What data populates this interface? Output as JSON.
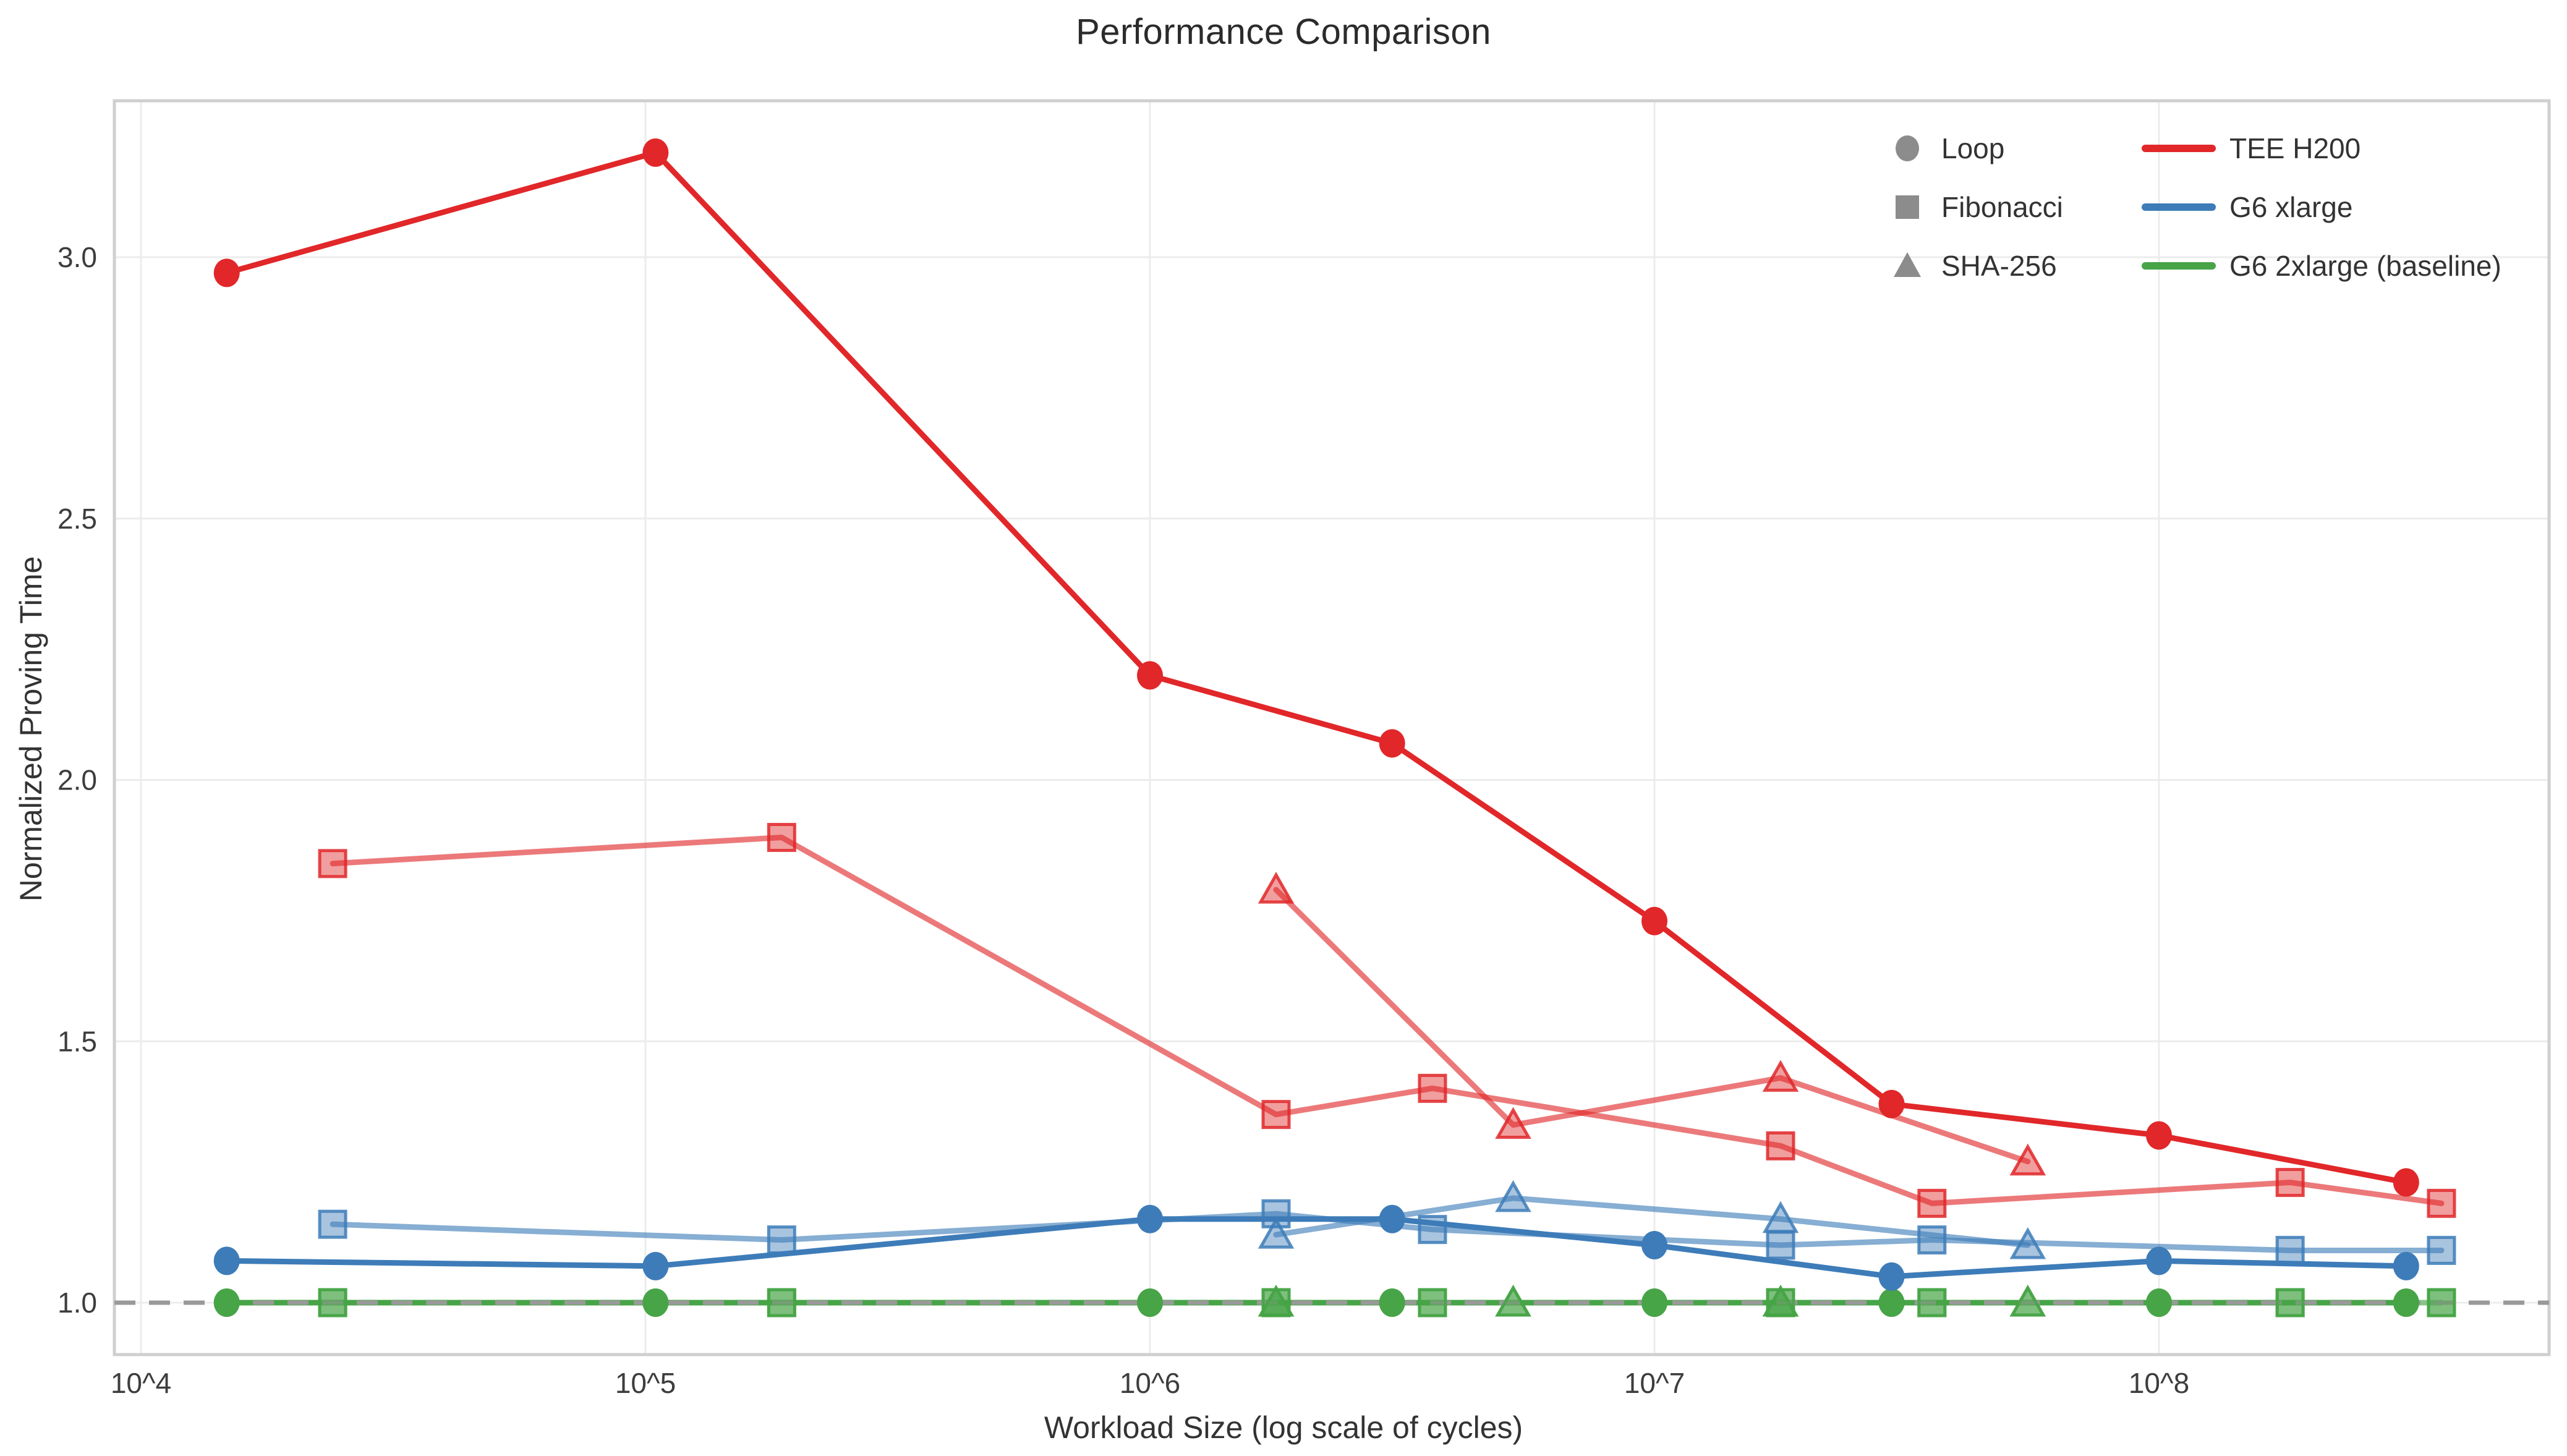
{
  "chart": {
    "title": "Performance Comparison",
    "xlabel": "Workload Size (log scale of cycles)",
    "ylabel": "Normalized Proving Time"
  },
  "chart_data": {
    "type": "line",
    "title": "Performance Comparison",
    "xlabel": "Workload Size (log scale of cycles)",
    "ylabel": "Normalized Proving Time",
    "x_axis": {
      "scale": "log10",
      "range_log": [
        3.947,
        8.774
      ],
      "ticks": [
        {
          "log": 4,
          "label": "10^4"
        },
        {
          "log": 5,
          "label": "10^5"
        },
        {
          "log": 6,
          "label": "10^6"
        },
        {
          "log": 7,
          "label": "10^7"
        },
        {
          "log": 8,
          "label": "10^8"
        }
      ]
    },
    "y_axis": {
      "range": [
        0.9,
        3.3
      ],
      "ticks": [
        {
          "value": 1.0,
          "label": "1.0"
        },
        {
          "value": 1.5,
          "label": "1.5"
        },
        {
          "value": 2.0,
          "label": "2.0"
        },
        {
          "value": 2.5,
          "label": "2.5"
        },
        {
          "value": 3.0,
          "label": "3.0"
        }
      ],
      "grid": true
    },
    "baseline": {
      "y": 1.0,
      "style": "dashed",
      "color": "#999999"
    },
    "workloads": [
      {
        "name": "Loop",
        "marker": "circle"
      },
      {
        "name": "Fibonacci",
        "marker": "square"
      },
      {
        "name": "SHA-256",
        "marker": "triangle"
      }
    ],
    "instances": [
      {
        "name": "TEE H200",
        "color": "#e12729"
      },
      {
        "name": "G6 xlarge",
        "color": "#3d7cb8"
      },
      {
        "name": "G6 2xlarge (baseline)",
        "color": "#47a447"
      }
    ],
    "series": [
      {
        "instance": "TEE H200",
        "workload": "Loop",
        "marker": "circle",
        "color": "#e12729",
        "emphasis": "solid",
        "x_log": [
          4.17,
          5.02,
          6.0,
          6.48,
          7.0,
          7.47,
          8.0,
          8.49
        ],
        "y": [
          2.97,
          3.2,
          2.2,
          2.07,
          1.73,
          1.38,
          1.32,
          1.23
        ]
      },
      {
        "instance": "TEE H200",
        "workload": "Fibonacci",
        "marker": "square",
        "color": "#e12729",
        "emphasis": "light",
        "x_log": [
          4.38,
          5.27,
          6.25,
          6.56,
          7.25,
          7.55,
          8.26,
          8.56
        ],
        "y": [
          1.84,
          1.89,
          1.36,
          1.41,
          1.3,
          1.19,
          1.23,
          1.19
        ]
      },
      {
        "instance": "TEE H200",
        "workload": "SHA-256",
        "marker": "triangle",
        "color": "#e12729",
        "emphasis": "light",
        "x_log": [
          6.25,
          6.72,
          7.25,
          7.74
        ],
        "y": [
          1.79,
          1.34,
          1.43,
          1.27
        ]
      },
      {
        "instance": "G6 xlarge",
        "workload": "Loop",
        "marker": "circle",
        "color": "#3d7cb8",
        "emphasis": "solid",
        "x_log": [
          4.17,
          5.02,
          6.0,
          6.48,
          7.0,
          7.47,
          8.0,
          8.49
        ],
        "y": [
          1.08,
          1.07,
          1.16,
          1.16,
          1.11,
          1.05,
          1.08,
          1.07
        ]
      },
      {
        "instance": "G6 xlarge",
        "workload": "Fibonacci",
        "marker": "square",
        "color": "#3d7cb8",
        "emphasis": "light",
        "x_log": [
          4.38,
          5.27,
          6.25,
          6.56,
          7.25,
          7.55,
          8.26,
          8.56
        ],
        "y": [
          1.15,
          1.12,
          1.17,
          1.14,
          1.11,
          1.12,
          1.1,
          1.1
        ]
      },
      {
        "instance": "G6 xlarge",
        "workload": "SHA-256",
        "marker": "triangle",
        "color": "#3d7cb8",
        "emphasis": "light",
        "x_log": [
          6.25,
          6.72,
          7.25,
          7.74
        ],
        "y": [
          1.13,
          1.2,
          1.16,
          1.11
        ]
      },
      {
        "instance": "G6 2xlarge (baseline)",
        "workload": "Loop",
        "marker": "circle",
        "color": "#47a447",
        "emphasis": "solid",
        "x_log": [
          4.17,
          5.02,
          6.0,
          6.48,
          7.0,
          7.47,
          8.0,
          8.49
        ],
        "y": [
          1.0,
          1.0,
          1.0,
          1.0,
          1.0,
          1.0,
          1.0,
          1.0
        ]
      },
      {
        "instance": "G6 2xlarge (baseline)",
        "workload": "Fibonacci",
        "marker": "square",
        "color": "#47a447",
        "emphasis": "light",
        "x_log": [
          4.38,
          5.27,
          6.25,
          6.56,
          7.25,
          7.55,
          8.26,
          8.56
        ],
        "y": [
          1.0,
          1.0,
          1.0,
          1.0,
          1.0,
          1.0,
          1.0,
          1.0
        ]
      },
      {
        "instance": "G6 2xlarge (baseline)",
        "workload": "SHA-256",
        "marker": "triangle",
        "color": "#47a447",
        "emphasis": "light",
        "x_log": [
          6.25,
          6.72,
          7.25,
          7.74
        ],
        "y": [
          1.0,
          1.0,
          1.0,
          1.0
        ]
      }
    ],
    "legend": {
      "position": "upper-right-inside",
      "marker_items": [
        "Loop",
        "Fibonacci",
        "SHA-256"
      ],
      "marker_color": "#8c8c8c",
      "line_items": [
        {
          "label": "TEE H200",
          "color": "#e12729"
        },
        {
          "label": "G6 xlarge",
          "color": "#3d7cb8"
        },
        {
          "label": "G6 2xlarge (baseline)",
          "color": "#47a447"
        }
      ],
      "text_color": "#333333"
    },
    "layout_hints": {
      "grid_color": "#ececec",
      "spine_color": "#cfcfcf",
      "tick_text_color": "#3d3d3d",
      "background": "#ffffff"
    }
  }
}
